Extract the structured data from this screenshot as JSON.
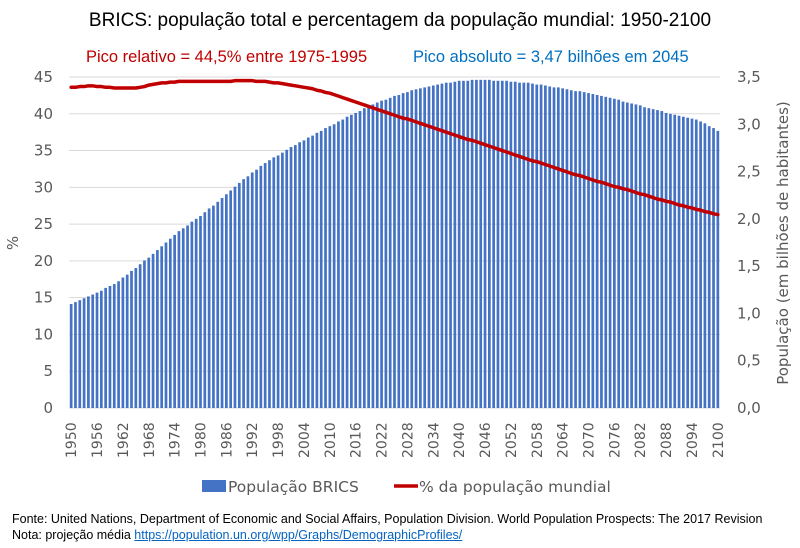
{
  "chart_data": {
    "type": "bar+line",
    "title": "BRICS: população total e percentagem da população mundial: 1950-2100",
    "annotations": {
      "relative_peak": "Pico relativo = 44,5% entre 1975-1995",
      "absolute_peak": "Pico absoluto = 3,47 bilhões em 2045"
    },
    "y_left": {
      "label": "%",
      "range": [
        0,
        45
      ],
      "ticks": [
        "0",
        "5",
        "10",
        "15",
        "20",
        "25",
        "30",
        "35",
        "40",
        "45"
      ]
    },
    "y_right": {
      "label": "População (em bilhões de habitantes)",
      "range": [
        0,
        3.5
      ],
      "ticks": [
        "0,0",
        "0,5",
        "1,0",
        "1,5",
        "2,0",
        "2,5",
        "3,0",
        "3,5"
      ]
    },
    "x": {
      "start": 1950,
      "end": 2100,
      "tick_labels": [
        "1950",
        "1956",
        "1962",
        "1968",
        "1974",
        "1980",
        "1986",
        "1992",
        "1998",
        "2004",
        "2010",
        "2016",
        "2022",
        "2028",
        "2034",
        "2040",
        "2046",
        "2052",
        "2058",
        "2064",
        "2070",
        "2076",
        "2082",
        "2088",
        "2094",
        "2100"
      ]
    },
    "grid": true,
    "legend_position": "bottom",
    "series": [
      {
        "name": "População BRICS",
        "type": "bar",
        "axis": "right",
        "color": "#4472c4",
        "values": [
          1.1,
          1.12,
          1.14,
          1.16,
          1.18,
          1.2,
          1.22,
          1.24,
          1.27,
          1.29,
          1.31,
          1.34,
          1.38,
          1.41,
          1.45,
          1.48,
          1.52,
          1.56,
          1.59,
          1.63,
          1.67,
          1.71,
          1.75,
          1.79,
          1.83,
          1.87,
          1.9,
          1.93,
          1.97,
          2.0,
          2.03,
          2.07,
          2.11,
          2.14,
          2.18,
          2.22,
          2.26,
          2.3,
          2.34,
          2.38,
          2.42,
          2.45,
          2.49,
          2.52,
          2.56,
          2.59,
          2.62,
          2.65,
          2.67,
          2.7,
          2.73,
          2.76,
          2.78,
          2.81,
          2.83,
          2.86,
          2.88,
          2.91,
          2.93,
          2.96,
          2.98,
          3.0,
          3.03,
          3.05,
          3.08,
          3.1,
          3.12,
          3.14,
          3.17,
          3.19,
          3.21,
          3.23,
          3.25,
          3.26,
          3.28,
          3.3,
          3.31,
          3.33,
          3.34,
          3.36,
          3.37,
          3.38,
          3.39,
          3.4,
          3.41,
          3.42,
          3.43,
          3.44,
          3.44,
          3.45,
          3.46,
          3.46,
          3.46,
          3.47,
          3.47,
          3.47,
          3.47,
          3.47,
          3.46,
          3.46,
          3.46,
          3.46,
          3.45,
          3.45,
          3.44,
          3.44,
          3.44,
          3.43,
          3.42,
          3.42,
          3.41,
          3.4,
          3.39,
          3.39,
          3.38,
          3.37,
          3.36,
          3.35,
          3.35,
          3.34,
          3.33,
          3.32,
          3.31,
          3.3,
          3.29,
          3.28,
          3.27,
          3.26,
          3.24,
          3.23,
          3.22,
          3.21,
          3.2,
          3.18,
          3.17,
          3.16,
          3.15,
          3.14,
          3.12,
          3.11,
          3.1,
          3.09,
          3.08,
          3.07,
          3.06,
          3.05,
          3.03,
          3.01,
          2.98,
          2.96,
          2.93
        ]
      },
      {
        "name": "% da população mundial",
        "type": "line",
        "axis": "left",
        "color": "#c00000",
        "values": [
          43.6,
          43.6,
          43.7,
          43.7,
          43.8,
          43.8,
          43.7,
          43.7,
          43.6,
          43.6,
          43.5,
          43.5,
          43.5,
          43.5,
          43.5,
          43.5,
          43.6,
          43.7,
          43.9,
          44.0,
          44.1,
          44.2,
          44.2,
          44.3,
          44.3,
          44.4,
          44.4,
          44.4,
          44.4,
          44.4,
          44.4,
          44.4,
          44.4,
          44.4,
          44.4,
          44.4,
          44.4,
          44.4,
          44.5,
          44.5,
          44.5,
          44.5,
          44.5,
          44.4,
          44.4,
          44.4,
          44.3,
          44.2,
          44.2,
          44.1,
          44.0,
          43.9,
          43.8,
          43.7,
          43.6,
          43.5,
          43.4,
          43.2,
          43.1,
          42.9,
          42.8,
          42.6,
          42.4,
          42.2,
          42.0,
          41.8,
          41.6,
          41.4,
          41.2,
          41.0,
          40.8,
          40.6,
          40.4,
          40.2,
          40.0,
          39.8,
          39.6,
          39.4,
          39.3,
          39.1,
          38.9,
          38.7,
          38.5,
          38.3,
          38.1,
          37.9,
          37.7,
          37.5,
          37.3,
          37.1,
          36.9,
          36.7,
          36.5,
          36.4,
          36.2,
          36.0,
          35.8,
          35.6,
          35.4,
          35.2,
          35.0,
          34.8,
          34.6,
          34.4,
          34.2,
          34.0,
          33.8,
          33.6,
          33.5,
          33.3,
          33.1,
          32.9,
          32.7,
          32.5,
          32.3,
          32.1,
          31.9,
          31.7,
          31.6,
          31.4,
          31.2,
          31.0,
          30.8,
          30.7,
          30.5,
          30.3,
          30.1,
          30.0,
          29.8,
          29.7,
          29.5,
          29.3,
          29.1,
          29.0,
          28.8,
          28.6,
          28.4,
          28.3,
          28.1,
          28.0,
          27.8,
          27.6,
          27.5,
          27.3,
          27.2,
          27.0,
          26.9,
          26.7,
          26.6,
          26.4,
          26.3
        ]
      }
    ]
  },
  "footer": {
    "source": "Fonte: United Nations, Department of Economic and Social Affairs, Population Division. World Population Prospects: The 2017 Revision",
    "note_prefix": "Nota: projeção média ",
    "note_link": "https://population.un.org/wpp/Graphs/DemographicProfiles/"
  }
}
